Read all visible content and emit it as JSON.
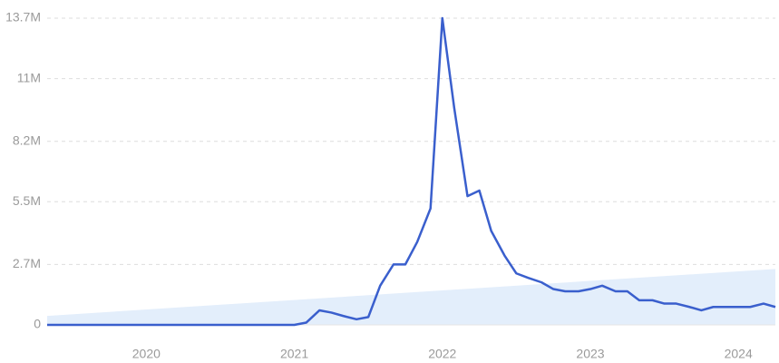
{
  "chart_data": {
    "type": "line",
    "x": [
      2019.33,
      2019.42,
      2019.5,
      2019.58,
      2019.67,
      2019.75,
      2019.83,
      2019.92,
      2020,
      2020.08,
      2020.17,
      2020.25,
      2020.33,
      2020.42,
      2020.5,
      2020.58,
      2020.67,
      2020.75,
      2020.83,
      2020.92,
      2021,
      2021.08,
      2021.17,
      2021.25,
      2021.33,
      2021.42,
      2021.5,
      2021.58,
      2021.67,
      2021.75,
      2021.83,
      2021.92,
      2022,
      2022.08,
      2022.17,
      2022.25,
      2022.33,
      2022.42,
      2022.5,
      2022.58,
      2022.67,
      2022.75,
      2022.83,
      2022.92,
      2023,
      2023.08,
      2023.17,
      2023.25,
      2023.33,
      2023.42,
      2023.5,
      2023.58,
      2023.67,
      2023.75,
      2023.83,
      2023.92,
      2024,
      2024.08,
      2024.17,
      2024.25
    ],
    "series": [
      {
        "color": "#3a5fcd",
        "values": [
          0,
          0,
          0,
          0,
          0,
          0,
          0,
          0,
          0,
          0,
          0,
          0,
          0,
          0,
          0,
          0,
          0,
          0,
          0,
          0,
          0,
          100000,
          650000,
          550000,
          400000,
          250000,
          350000,
          1750000,
          2700000,
          2700000,
          3700000,
          5200000,
          13700000,
          9700000,
          5750000,
          6000000,
          4200000,
          3100000,
          2300000,
          2100000,
          1900000,
          1600000,
          1500000,
          1500000,
          1600000,
          1750000,
          1500000,
          1500000,
          1100000,
          1100000,
          950000,
          950000,
          800000,
          650000,
          800000,
          800000,
          800000,
          800000,
          950000,
          800000
        ]
      }
    ],
    "trend": {
      "color": "#e3eefb",
      "x": [
        2019.33,
        2024.25
      ],
      "values": [
        400000,
        2500000
      ]
    },
    "xlim": [
      2019.33,
      2024.25
    ],
    "xticks": [
      2020,
      2021,
      2022,
      2023,
      2024
    ],
    "ylim": [
      0,
      13700000
    ],
    "yticks": [
      0,
      {
        "value": 2700000,
        "label": "2.7M"
      },
      {
        "value": 5500000,
        "label": "5.5M"
      },
      {
        "value": 8200000,
        "label": "8.2M"
      },
      {
        "value": 11000000,
        "label": "11M"
      },
      {
        "value": 13700000,
        "label": "13.7M"
      }
    ],
    "grid": true
  }
}
